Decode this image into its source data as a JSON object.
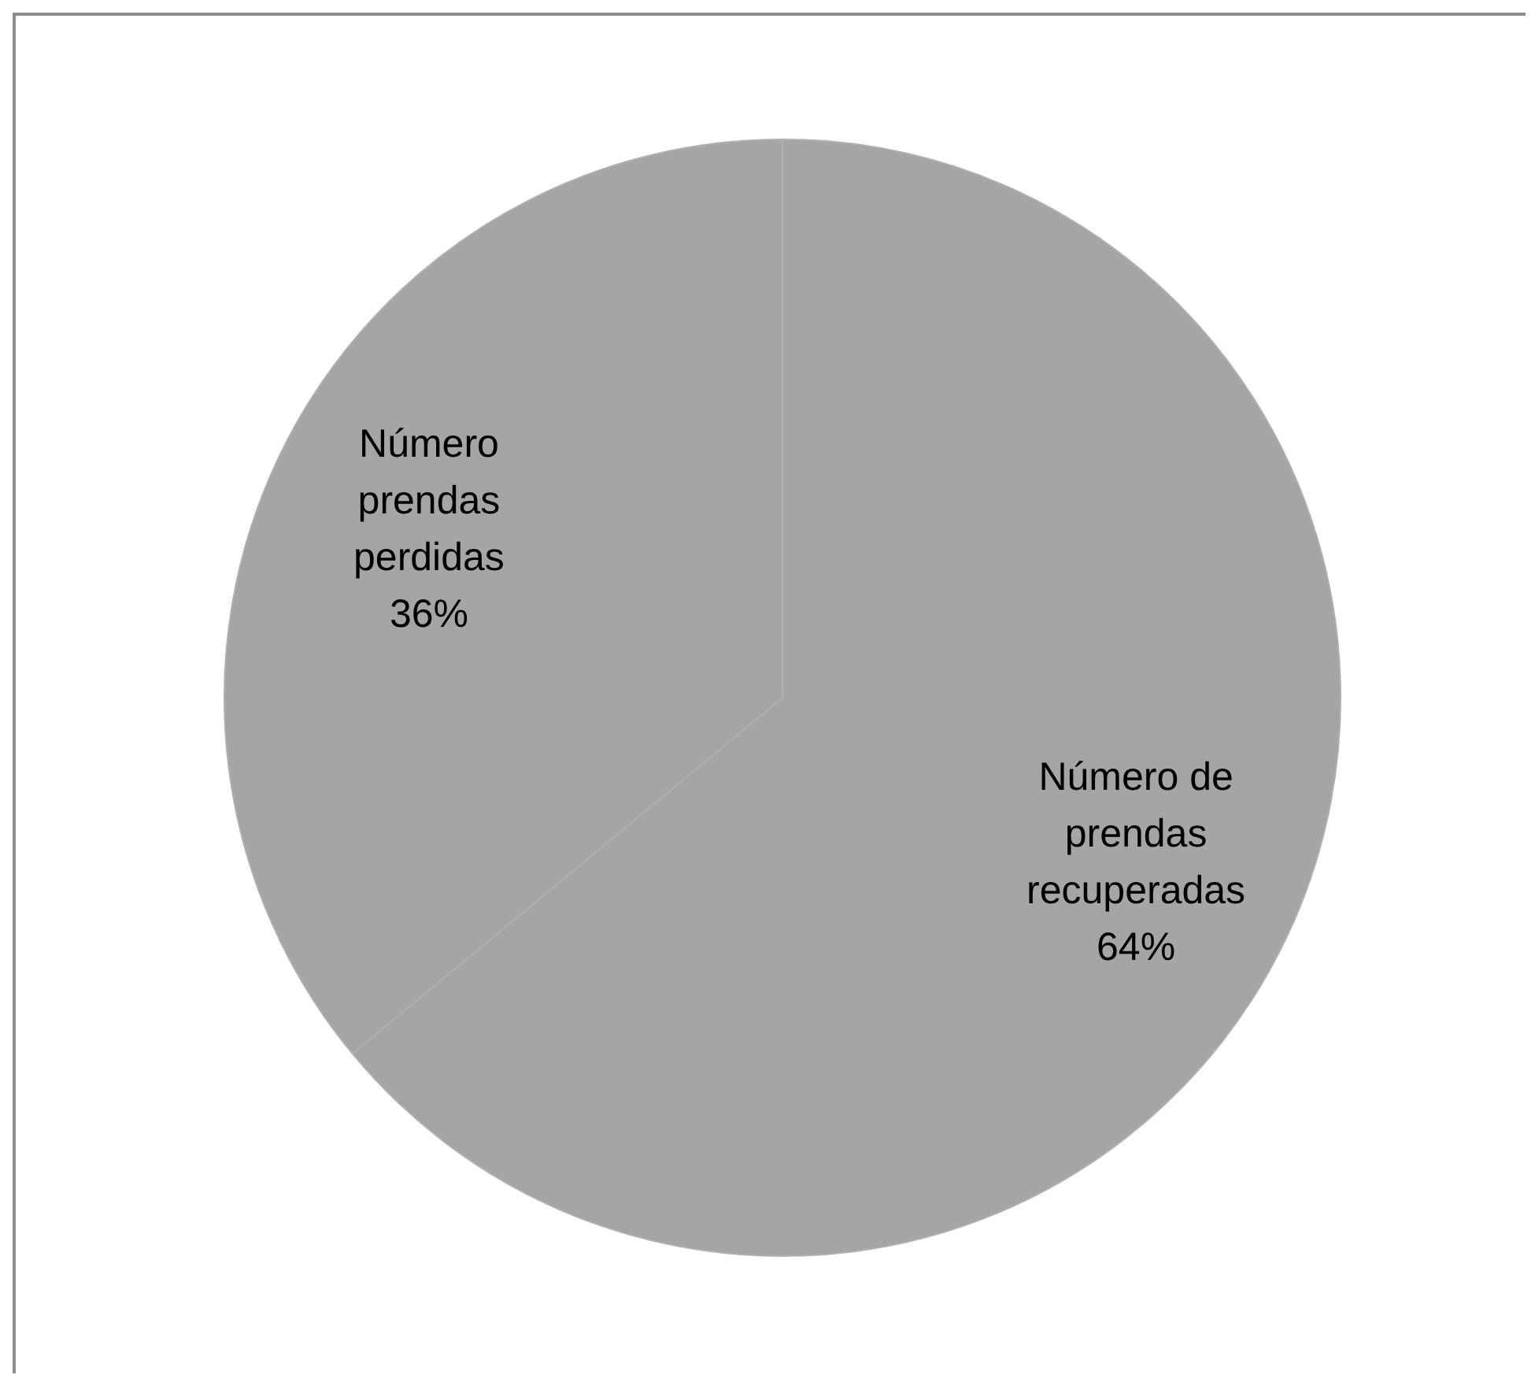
{
  "chart_data": {
    "type": "pie",
    "categories": [
      "Número de prendas recuperadas",
      "Número prendas perdidas"
    ],
    "values": [
      64,
      36
    ],
    "colors": [
      "#a5a5a5",
      "#a5a5a5"
    ],
    "value_labels": [
      "64%",
      "36%"
    ]
  }
}
